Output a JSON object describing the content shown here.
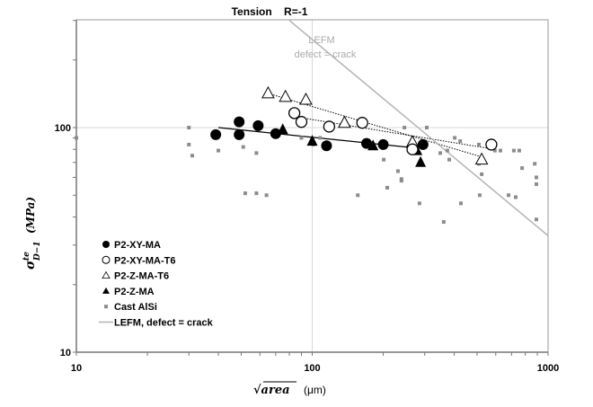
{
  "chart_data": {
    "type": "scatter",
    "title": "Tension    R=-1",
    "xlabel": "√area",
    "xlabel_unit": "(μm)",
    "ylabel": "σ",
    "ylabel_sup": "te",
    "ylabel_sub": "D−1",
    "ylabel_unit": "(MPa)",
    "xscale": "log",
    "yscale": "log",
    "xlim": [
      10,
      1000
    ],
    "ylim": [
      10,
      300
    ],
    "x_tick_labels": [
      "10",
      "100",
      "1000"
    ],
    "y_tick_labels": [
      "10",
      "100"
    ],
    "grid": "major lines at x=100 and y=100",
    "legend_placement": "lower-left inside",
    "annotation": {
      "line1": "LEFM",
      "line2": "defect = crack",
      "color": "#aaaaaa"
    },
    "series": [
      {
        "name": "P2-XY-MA",
        "marker": "filled-circle",
        "color": "#000000",
        "points": [
          [
            39,
            93
          ],
          [
            49,
            106
          ],
          [
            49,
            93
          ],
          [
            59,
            102
          ],
          [
            70,
            94
          ],
          [
            115,
            83
          ],
          [
            170,
            85
          ],
          [
            200,
            84
          ],
          [
            295,
            84
          ]
        ],
        "trend": {
          "style": "solid",
          "from": [
            40,
            100
          ],
          "to": [
            278,
            81
          ]
        }
      },
      {
        "name": "P2-XY-MA-T6",
        "marker": "open-circle",
        "color": "#000000",
        "points": [
          [
            84,
            116
          ],
          [
            90,
            106
          ],
          [
            118,
            101
          ],
          [
            163,
            105
          ],
          [
            266,
            80
          ],
          [
            575,
            84
          ]
        ],
        "trend": {
          "style": "dotted",
          "from": [
            88,
            111
          ],
          "to": [
            595,
            80
          ]
        }
      },
      {
        "name": "P2-Z-MA-T6",
        "marker": "open-triangle",
        "color": "#000000",
        "points": [
          [
            65,
            142
          ],
          [
            77,
            137
          ],
          [
            94,
            133
          ],
          [
            137,
            105
          ],
          [
            266,
            86
          ],
          [
            523,
            72
          ]
        ],
        "trend": {
          "style": "dotted",
          "from": [
            65,
            142
          ],
          "to": [
            523,
            74
          ]
        }
      },
      {
        "name": "P2-Z-MA",
        "marker": "filled-triangle",
        "color": "#000000",
        "points": [
          [
            75,
            98
          ],
          [
            100,
            87
          ],
          [
            181,
            83
          ],
          [
            278,
            79
          ],
          [
            288,
            70
          ]
        ]
      },
      {
        "name": "Cast AlSi",
        "marker": "square",
        "color": "#8c8c8c",
        "points": [
          [
            10,
            90
          ],
          [
            30,
            100
          ],
          [
            30,
            84
          ],
          [
            31,
            75
          ],
          [
            40,
            79
          ],
          [
            51,
            82
          ],
          [
            58,
            77
          ],
          [
            90,
            90
          ],
          [
            101,
            84
          ],
          [
            108,
            90
          ],
          [
            201,
            72
          ],
          [
            231,
            64
          ],
          [
            239,
            59
          ],
          [
            246,
            100
          ],
          [
            306,
            100
          ],
          [
            349,
            77
          ],
          [
            374,
            79
          ],
          [
            381,
            72
          ],
          [
            402,
            90
          ],
          [
            424,
            87
          ],
          [
            509,
            84
          ],
          [
            509,
            69
          ],
          [
            523,
            62
          ],
          [
            595,
            79
          ],
          [
            628,
            79
          ],
          [
            716,
            79
          ],
          [
            755,
            79
          ],
          [
            776,
            66
          ],
          [
            878,
            69
          ],
          [
            892,
            60
          ],
          [
            52,
            51
          ],
          [
            58,
            51
          ],
          [
            64,
            50
          ],
          [
            156,
            50
          ],
          [
            208,
            54
          ],
          [
            239,
            58
          ],
          [
            285,
            46
          ],
          [
            361,
            38
          ],
          [
            427,
            46
          ],
          [
            513,
            50
          ],
          [
            680,
            50
          ],
          [
            729,
            49
          ],
          [
            892,
            39
          ],
          [
            892,
            56
          ]
        ]
      },
      {
        "name": "LEFM, defect = crack",
        "marker": "line",
        "color": "#b4b4b4",
        "from": [
          80,
          300
        ],
        "to": [
          1000,
          33
        ]
      }
    ]
  }
}
